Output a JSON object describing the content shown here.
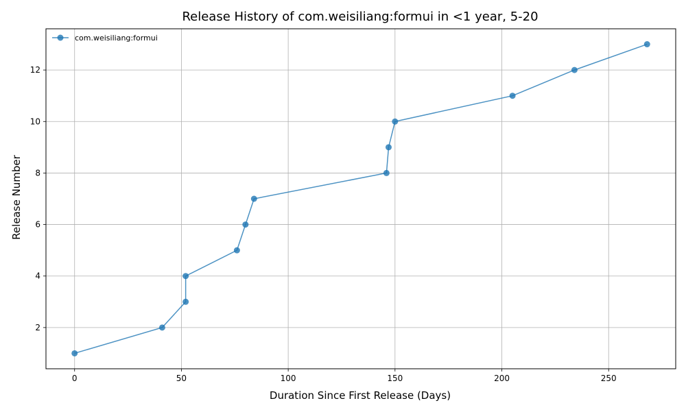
{
  "chart_data": {
    "type": "line",
    "title": "Release History of com.weisiliang:formui in <1 year, 5-20",
    "xlabel": "Duration Since First Release (Days)",
    "ylabel": "Release Number",
    "xlim": [
      -13.4,
      281.4
    ],
    "ylim": [
      0.4,
      13.6
    ],
    "xticks": [
      0,
      50,
      100,
      150,
      200,
      250
    ],
    "yticks": [
      2,
      4,
      6,
      8,
      10,
      12
    ],
    "grid": true,
    "legend_position": "upper-left",
    "series": [
      {
        "name": "com.weisiliang:formui",
        "color": "#1f77b4",
        "marker": "circle",
        "x": [
          0,
          41,
          52,
          52,
          76,
          80,
          84,
          146,
          147,
          150,
          205,
          234,
          268
        ],
        "y": [
          1,
          2,
          3,
          4,
          5,
          6,
          7,
          8,
          9,
          10,
          11,
          12,
          13
        ]
      }
    ]
  }
}
